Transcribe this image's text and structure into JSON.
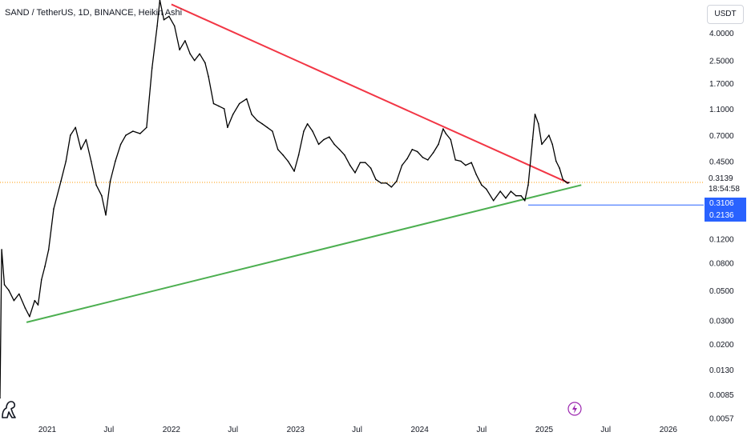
{
  "header": {
    "title": "SAND / TetherUS, 1D, BINANCE, Heikin Ashi",
    "currency_button": "USDT"
  },
  "price_axis": {
    "current_price": "0.3139",
    "countdown": "18:54:58",
    "badge_upper": "0.3106",
    "badge_lower": "0.2136"
  },
  "colors": {
    "price_line": "#000000",
    "resistance_line": "#f23645",
    "support_line": "#4caf50",
    "current_price_line": "#ff9800",
    "horizontal_marker": "#2962ff",
    "badge": "#2962ff"
  },
  "icons": {
    "logo": "tradingview-dino-icon",
    "lightning": "lightning-icon"
  },
  "chart_data": {
    "type": "line",
    "title": "SAND / TetherUS, 1D, BINANCE, Heikin Ashi",
    "yscale": "log",
    "ylim": [
      0.0055,
      7.0
    ],
    "xlim": [
      "2020-08-15",
      "2026-04-15"
    ],
    "y_ticks": [
      "4.0000",
      "2.5000",
      "1.7000",
      "1.1000",
      "0.7000",
      "0.4500",
      "0.1200",
      "0.0800",
      "0.0500",
      "0.0300",
      "0.0200",
      "0.0130",
      "0.0085",
      "0.0057"
    ],
    "x_ticks": [
      {
        "label": "2021",
        "date": "2021-01-01"
      },
      {
        "label": "Jul",
        "date": "2021-07-01"
      },
      {
        "label": "2022",
        "date": "2022-01-01"
      },
      {
        "label": "Jul",
        "date": "2022-07-01"
      },
      {
        "label": "2023",
        "date": "2023-01-01"
      },
      {
        "label": "Jul",
        "date": "2023-07-01"
      },
      {
        "label": "2024",
        "date": "2024-01-01"
      },
      {
        "label": "Jul",
        "date": "2024-07-01"
      },
      {
        "label": "2025",
        "date": "2025-01-01"
      },
      {
        "label": "Jul",
        "date": "2025-07-01"
      },
      {
        "label": "2026",
        "date": "2026-01-01"
      }
    ],
    "series": [
      {
        "points": [
          [
            "2020-08-15",
            0.008
          ],
          [
            "2020-08-20",
            0.1
          ],
          [
            "2020-08-28",
            0.055
          ],
          [
            "2020-09-10",
            0.05
          ],
          [
            "2020-09-25",
            0.042
          ],
          [
            "2020-10-10",
            0.047
          ],
          [
            "2020-10-28",
            0.037
          ],
          [
            "2020-11-10",
            0.032
          ],
          [
            "2020-11-25",
            0.042
          ],
          [
            "2020-12-05",
            0.039
          ],
          [
            "2020-12-15",
            0.06
          ],
          [
            "2020-12-25",
            0.075
          ],
          [
            "2021-01-05",
            0.1
          ],
          [
            "2021-01-20",
            0.2
          ],
          [
            "2021-02-10",
            0.32
          ],
          [
            "2021-02-25",
            0.45
          ],
          [
            "2021-03-10",
            0.7
          ],
          [
            "2021-03-25",
            0.8
          ],
          [
            "2021-04-10",
            0.55
          ],
          [
            "2021-04-25",
            0.65
          ],
          [
            "2021-05-10",
            0.45
          ],
          [
            "2021-05-25",
            0.3
          ],
          [
            "2021-06-10",
            0.25
          ],
          [
            "2021-06-22",
            0.18
          ],
          [
            "2021-07-05",
            0.32
          ],
          [
            "2021-07-20",
            0.45
          ],
          [
            "2021-08-05",
            0.6
          ],
          [
            "2021-08-20",
            0.7
          ],
          [
            "2021-09-10",
            0.75
          ],
          [
            "2021-10-01",
            0.72
          ],
          [
            "2021-10-20",
            0.8
          ],
          [
            "2021-11-05",
            2.2
          ],
          [
            "2021-11-20",
            4.5
          ],
          [
            "2021-11-28",
            7.0
          ],
          [
            "2021-12-10",
            5.0
          ],
          [
            "2021-12-25",
            5.3
          ],
          [
            "2022-01-10",
            4.5
          ],
          [
            "2022-01-25",
            3.0
          ],
          [
            "2022-02-10",
            3.5
          ],
          [
            "2022-02-25",
            2.8
          ],
          [
            "2022-03-10",
            2.5
          ],
          [
            "2022-03-25",
            2.8
          ],
          [
            "2022-04-10",
            2.4
          ],
          [
            "2022-04-20",
            1.9
          ],
          [
            "2022-05-05",
            1.2
          ],
          [
            "2022-05-20",
            1.15
          ],
          [
            "2022-06-05",
            1.1
          ],
          [
            "2022-06-15",
            0.8
          ],
          [
            "2022-07-01",
            1.0
          ],
          [
            "2022-07-20",
            1.2
          ],
          [
            "2022-08-10",
            1.3
          ],
          [
            "2022-08-25",
            1.0
          ],
          [
            "2022-09-10",
            0.9
          ],
          [
            "2022-09-25",
            0.85
          ],
          [
            "2022-10-10",
            0.8
          ],
          [
            "2022-10-25",
            0.75
          ],
          [
            "2022-11-10",
            0.55
          ],
          [
            "2022-11-25",
            0.5
          ],
          [
            "2022-12-10",
            0.45
          ],
          [
            "2022-12-28",
            0.38
          ],
          [
            "2023-01-10",
            0.5
          ],
          [
            "2023-01-25",
            0.75
          ],
          [
            "2023-02-05",
            0.85
          ],
          [
            "2023-02-20",
            0.75
          ],
          [
            "2023-03-10",
            0.6
          ],
          [
            "2023-03-25",
            0.65
          ],
          [
            "2023-04-10",
            0.68
          ],
          [
            "2023-04-25",
            0.6
          ],
          [
            "2023-05-10",
            0.55
          ],
          [
            "2023-05-25",
            0.5
          ],
          [
            "2023-06-10",
            0.42
          ],
          [
            "2023-06-25",
            0.37
          ],
          [
            "2023-07-10",
            0.44
          ],
          [
            "2023-07-25",
            0.44
          ],
          [
            "2023-08-10",
            0.4
          ],
          [
            "2023-08-25",
            0.33
          ],
          [
            "2023-09-10",
            0.31
          ],
          [
            "2023-09-25",
            0.31
          ],
          [
            "2023-10-10",
            0.29
          ],
          [
            "2023-10-25",
            0.32
          ],
          [
            "2023-11-10",
            0.42
          ],
          [
            "2023-11-25",
            0.47
          ],
          [
            "2023-12-10",
            0.55
          ],
          [
            "2023-12-25",
            0.53
          ],
          [
            "2024-01-10",
            0.48
          ],
          [
            "2024-01-25",
            0.46
          ],
          [
            "2024-02-10",
            0.52
          ],
          [
            "2024-02-25",
            0.6
          ],
          [
            "2024-03-10",
            0.78
          ],
          [
            "2024-03-18",
            0.72
          ],
          [
            "2024-04-01",
            0.65
          ],
          [
            "2024-04-15",
            0.46
          ],
          [
            "2024-05-01",
            0.45
          ],
          [
            "2024-05-15",
            0.42
          ],
          [
            "2024-06-01",
            0.44
          ],
          [
            "2024-06-15",
            0.36
          ],
          [
            "2024-07-01",
            0.3
          ],
          [
            "2024-07-15",
            0.28
          ],
          [
            "2024-08-05",
            0.23
          ],
          [
            "2024-08-25",
            0.27
          ],
          [
            "2024-09-10",
            0.24
          ],
          [
            "2024-09-25",
            0.27
          ],
          [
            "2024-10-10",
            0.25
          ],
          [
            "2024-10-25",
            0.25
          ],
          [
            "2024-11-05",
            0.23
          ],
          [
            "2024-11-15",
            0.3
          ],
          [
            "2024-11-28",
            0.65
          ],
          [
            "2024-12-05",
            1.0
          ],
          [
            "2024-12-15",
            0.85
          ],
          [
            "2024-12-25",
            0.6
          ],
          [
            "2025-01-05",
            0.65
          ],
          [
            "2025-01-15",
            0.7
          ],
          [
            "2025-01-25",
            0.6
          ],
          [
            "2025-02-05",
            0.45
          ],
          [
            "2025-02-15",
            0.4
          ],
          [
            "2025-02-25",
            0.33
          ],
          [
            "2025-03-10",
            0.31
          ],
          [
            "2025-03-15",
            0.3139
          ]
        ]
      }
    ],
    "trendlines": [
      {
        "color": "red",
        "from": [
          "2022-01-01",
          6.5
        ],
        "to": [
          "2025-03-15",
          0.31
        ]
      },
      {
        "color": "green",
        "from": [
          "2020-11-01",
          0.029
        ],
        "to": [
          "2025-04-20",
          0.3
        ]
      }
    ],
    "horizontal_lines": [
      {
        "style": "dotted",
        "color": "orange",
        "value": 0.3139
      },
      {
        "style": "solid",
        "color": "blue",
        "value": 0.2136,
        "from": "2024-11-15"
      }
    ]
  }
}
